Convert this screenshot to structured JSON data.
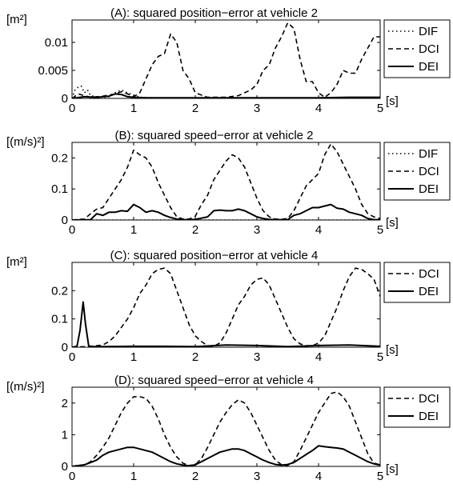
{
  "chart_data": [
    {
      "type": "line",
      "title": "(A): squared position−error at vehicle 2",
      "ylabel_unit": "[m²]",
      "xlabel_unit": "[s]",
      "xlim": [
        0,
        5
      ],
      "ylim": [
        0,
        0.014
      ],
      "yticks": [
        0,
        0.005,
        0.01
      ],
      "ytick_labels": [
        "0",
        "0.005",
        "0.01"
      ],
      "xticks": [
        0,
        1,
        2,
        3,
        4,
        5
      ],
      "xtick_labels": [
        "0",
        "1",
        "2",
        "3",
        "4",
        "5"
      ],
      "legend": [
        "DIF",
        "DCI",
        "DEI"
      ],
      "series": [
        {
          "name": "DIF",
          "style": "dotted",
          "x": [
            0,
            0.05,
            0.1,
            0.15,
            0.2,
            0.25,
            0.3,
            0.4,
            0.5,
            0.6,
            0.7,
            0.8,
            0.9,
            1.0,
            1.1,
            1.3,
            1.6,
            2.0,
            2.5,
            3.0,
            3.5,
            4.0,
            4.5,
            5.0
          ],
          "y": [
            0,
            0.0015,
            0.002,
            0.0022,
            0.001,
            0.0015,
            0.0005,
            0.0003,
            0.0002,
            0.0003,
            0.001,
            0.0015,
            0.001,
            0.0006,
            0.0002,
            0.0001,
            0.0001,
            0.0001,
            0.0001,
            0.0001,
            0.0001,
            0.0001,
            0.0001,
            0.0001
          ]
        },
        {
          "name": "DCI",
          "style": "dashed",
          "x": [
            0,
            0.1,
            0.2,
            0.3,
            0.5,
            0.7,
            0.8,
            0.9,
            1.0,
            1.1,
            1.2,
            1.3,
            1.4,
            1.5,
            1.6,
            1.7,
            1.8,
            1.9,
            2.0,
            2.2,
            2.5,
            2.7,
            2.8,
            2.9,
            3.0,
            3.1,
            3.2,
            3.3,
            3.4,
            3.5,
            3.6,
            3.7,
            3.8,
            3.9,
            4.0,
            4.1,
            4.2,
            4.3,
            4.4,
            4.5,
            4.6,
            4.7,
            4.8,
            4.9,
            5.0
          ],
          "y": [
            0,
            0.0008,
            0.0005,
            0.0002,
            0.0004,
            0.0008,
            0.0012,
            0.0008,
            0.0003,
            0.001,
            0.0035,
            0.006,
            0.0075,
            0.008,
            0.0115,
            0.01,
            0.005,
            0.0035,
            0.001,
            0.0002,
            0.0002,
            0.0005,
            0.001,
            0.0015,
            0.0025,
            0.005,
            0.006,
            0.009,
            0.011,
            0.0135,
            0.0125,
            0.007,
            0.003,
            0.003,
            0.001,
            0.0002,
            0.001,
            0.0025,
            0.005,
            0.0045,
            0.0045,
            0.007,
            0.009,
            0.011,
            0.011
          ]
        },
        {
          "name": "DEI",
          "style": "solid",
          "x": [
            0,
            0.2,
            0.4,
            0.6,
            0.7,
            0.8,
            0.9,
            1.0,
            1.2,
            1.5,
            2.0,
            2.5,
            3.0,
            3.5,
            4.0,
            4.5,
            5.0
          ],
          "y": [
            0,
            0.0003,
            0.0002,
            0.0004,
            0.0008,
            0.0007,
            0.0003,
            0.0002,
            0.0001,
            0.0001,
            0.0001,
            0.0001,
            0.0001,
            0.0001,
            0.0001,
            0.0002,
            0.0002
          ]
        }
      ]
    },
    {
      "type": "line",
      "title": "(B): squared speed−error at vehicle 2",
      "ylabel_unit": "[(m/s)²]",
      "xlabel_unit": "[s]",
      "xlim": [
        0,
        5
      ],
      "ylim": [
        0,
        0.25
      ],
      "yticks": [
        0,
        0.1,
        0.2
      ],
      "ytick_labels": [
        "0",
        "0.1",
        "0.2"
      ],
      "xticks": [
        0,
        1,
        2,
        3,
        4,
        5
      ],
      "xtick_labels": [
        "0",
        "1",
        "2",
        "3",
        "4",
        "5"
      ],
      "legend": [
        "DIF",
        "DCI",
        "DEI"
      ],
      "series": [
        {
          "name": "DIF",
          "style": "dotted",
          "x": [
            0,
            1,
            2,
            3,
            4,
            5
          ],
          "y": [
            0,
            0,
            0,
            0,
            0,
            0
          ]
        },
        {
          "name": "DCI",
          "style": "dashed",
          "x": [
            0,
            0.2,
            0.3,
            0.4,
            0.5,
            0.6,
            0.7,
            0.8,
            0.9,
            1.0,
            1.1,
            1.2,
            1.3,
            1.4,
            1.5,
            1.6,
            1.7,
            1.8,
            1.9,
            2.0,
            2.1,
            2.2,
            2.3,
            2.4,
            2.5,
            2.6,
            2.7,
            2.8,
            2.9,
            3.0,
            3.1,
            3.2,
            3.3,
            3.4,
            3.5,
            3.6,
            3.7,
            3.8,
            3.9,
            4.0,
            4.1,
            4.2,
            4.3,
            4.4,
            4.5,
            4.6,
            4.7,
            4.8,
            4.9,
            5.0
          ],
          "y": [
            0,
            0.003,
            0.02,
            0.035,
            0.04,
            0.07,
            0.1,
            0.13,
            0.17,
            0.225,
            0.21,
            0.2,
            0.17,
            0.12,
            0.08,
            0.04,
            0.01,
            0.003,
            0.003,
            0.012,
            0.05,
            0.08,
            0.13,
            0.16,
            0.19,
            0.21,
            0.2,
            0.17,
            0.12,
            0.07,
            0.03,
            0.01,
            0.003,
            0.002,
            0.005,
            0.03,
            0.07,
            0.11,
            0.13,
            0.15,
            0.21,
            0.245,
            0.22,
            0.18,
            0.14,
            0.1,
            0.05,
            0.02,
            0.01,
            0.005
          ]
        },
        {
          "name": "DEI",
          "style": "solid",
          "x": [
            0,
            0.3,
            0.4,
            0.5,
            0.6,
            0.7,
            0.8,
            0.9,
            1.0,
            1.1,
            1.2,
            1.3,
            1.4,
            1.5,
            1.6,
            1.7,
            1.8,
            1.9,
            2.0,
            2.2,
            2.3,
            2.4,
            2.5,
            2.6,
            2.7,
            2.8,
            2.9,
            3.0,
            3.1,
            3.2,
            3.3,
            3.5,
            3.6,
            3.7,
            3.8,
            3.9,
            4.0,
            4.1,
            4.2,
            4.3,
            4.4,
            4.5,
            4.6,
            4.7,
            4.8,
            4.9,
            5.0
          ],
          "y": [
            0,
            0.001,
            0.02,
            0.015,
            0.025,
            0.025,
            0.03,
            0.028,
            0.05,
            0.04,
            0.025,
            0.03,
            0.025,
            0.015,
            0.008,
            0.003,
            0.001,
            0.001,
            0.002,
            0.01,
            0.03,
            0.032,
            0.03,
            0.03,
            0.035,
            0.03,
            0.02,
            0.01,
            0.005,
            0.002,
            0.001,
            0.001,
            0.015,
            0.02,
            0.03,
            0.04,
            0.04,
            0.045,
            0.05,
            0.038,
            0.035,
            0.025,
            0.02,
            0.015,
            0.005,
            0.001,
            0.001
          ]
        }
      ]
    },
    {
      "type": "line",
      "title": "(C): squared position−error at vehicle 4",
      "ylabel_unit": "[m²]",
      "xlabel_unit": "[s]",
      "xlim": [
        0,
        5
      ],
      "ylim": [
        0,
        0.3
      ],
      "yticks": [
        0,
        0.1,
        0.2
      ],
      "ytick_labels": [
        "0",
        "0.1",
        "0.2"
      ],
      "xticks": [
        0,
        1,
        2,
        3,
        4,
        5
      ],
      "xtick_labels": [
        "0",
        "1",
        "2",
        "3",
        "4",
        "5"
      ],
      "legend": [
        "DCI",
        "DEI"
      ],
      "series": [
        {
          "name": "DCI",
          "style": "dashed",
          "x": [
            0,
            0.3,
            0.5,
            0.6,
            0.7,
            0.8,
            0.9,
            1.0,
            1.1,
            1.2,
            1.3,
            1.4,
            1.5,
            1.6,
            1.7,
            1.8,
            1.9,
            2.0,
            2.1,
            2.2,
            2.3,
            2.4,
            2.5,
            2.6,
            2.7,
            2.8,
            2.9,
            3.0,
            3.1,
            3.2,
            3.3,
            3.4,
            3.5,
            3.6,
            3.7,
            3.8,
            3.9,
            4.0,
            4.1,
            4.2,
            4.3,
            4.4,
            4.5,
            4.6,
            4.7,
            4.8,
            4.9,
            5.0
          ],
          "y": [
            0,
            0.003,
            0.008,
            0.02,
            0.04,
            0.07,
            0.1,
            0.14,
            0.19,
            0.22,
            0.26,
            0.275,
            0.28,
            0.26,
            0.2,
            0.14,
            0.08,
            0.04,
            0.02,
            0.005,
            0.003,
            0.015,
            0.05,
            0.1,
            0.15,
            0.18,
            0.22,
            0.24,
            0.245,
            0.22,
            0.17,
            0.12,
            0.07,
            0.03,
            0.012,
            0.005,
            0.005,
            0.015,
            0.04,
            0.09,
            0.14,
            0.2,
            0.25,
            0.28,
            0.275,
            0.26,
            0.24,
            0.18
          ]
        },
        {
          "name": "DEI",
          "style": "solid",
          "x": [
            0,
            0.08,
            0.13,
            0.18,
            0.22,
            0.27,
            0.32,
            0.5,
            1.0,
            1.5,
            2.0,
            2.5,
            3.0,
            3.5,
            4.0,
            4.5,
            5.0
          ],
          "y": [
            0,
            0.003,
            0.06,
            0.16,
            0.08,
            0.005,
            0.002,
            0.002,
            0.003,
            0.003,
            0.002,
            0.008,
            0.006,
            0.002,
            0.006,
            0.008,
            0.003
          ]
        }
      ]
    },
    {
      "type": "line",
      "title": "(D): squared speed−error at vehicle 4",
      "ylabel_unit": "[(m/s)²]",
      "xlabel_unit": "[s]",
      "xlim": [
        0,
        5
      ],
      "ylim": [
        0,
        2.5
      ],
      "yticks": [
        0,
        1,
        2
      ],
      "ytick_labels": [
        "0",
        "1",
        "2"
      ],
      "xticks": [
        0,
        1,
        2,
        3,
        4,
        5
      ],
      "xtick_labels": [
        "0",
        "1",
        "2",
        "3",
        "4",
        "5"
      ],
      "legend": [
        "DCI",
        "DEI"
      ],
      "series": [
        {
          "name": "DCI",
          "style": "dashed",
          "x": [
            0,
            0.2,
            0.3,
            0.4,
            0.5,
            0.6,
            0.7,
            0.8,
            0.9,
            1.0,
            1.1,
            1.2,
            1.3,
            1.4,
            1.5,
            1.6,
            1.7,
            1.8,
            1.9,
            2.0,
            2.1,
            2.2,
            2.3,
            2.4,
            2.5,
            2.6,
            2.7,
            2.8,
            2.9,
            3.0,
            3.1,
            3.2,
            3.3,
            3.4,
            3.5,
            3.6,
            3.7,
            3.8,
            3.9,
            4.0,
            4.1,
            4.2,
            4.3,
            4.4,
            4.5,
            4.6,
            4.7,
            4.8,
            4.9,
            5.0
          ],
          "y": [
            0,
            0.05,
            0.15,
            0.35,
            0.6,
            0.9,
            1.3,
            1.7,
            2.0,
            2.2,
            2.2,
            2.15,
            1.9,
            1.5,
            1.0,
            0.6,
            0.3,
            0.1,
            0.03,
            0.05,
            0.25,
            0.6,
            1.0,
            1.4,
            1.7,
            1.95,
            2.1,
            2.0,
            1.7,
            1.3,
            0.9,
            0.5,
            0.2,
            0.05,
            0.03,
            0.15,
            0.5,
            0.9,
            1.3,
            1.7,
            2.0,
            2.3,
            2.35,
            2.2,
            1.9,
            1.4,
            0.9,
            0.4,
            0.1,
            0.05
          ]
        },
        {
          "name": "DEI",
          "style": "solid",
          "x": [
            0,
            0.2,
            0.3,
            0.4,
            0.5,
            0.6,
            0.7,
            0.8,
            0.9,
            1.0,
            1.1,
            1.2,
            1.3,
            1.4,
            1.5,
            1.6,
            1.7,
            1.8,
            1.9,
            2.0,
            2.1,
            2.2,
            2.3,
            2.4,
            2.5,
            2.6,
            2.7,
            2.8,
            2.9,
            3.0,
            3.1,
            3.2,
            3.3,
            3.4,
            3.5,
            3.6,
            3.7,
            3.8,
            3.9,
            4.0,
            4.1,
            4.2,
            4.3,
            4.4,
            4.5,
            4.6,
            4.7,
            4.8,
            4.9,
            5.0
          ],
          "y": [
            0,
            0.05,
            0.12,
            0.2,
            0.35,
            0.45,
            0.5,
            0.55,
            0.6,
            0.6,
            0.55,
            0.5,
            0.45,
            0.35,
            0.25,
            0.15,
            0.08,
            0.04,
            0.02,
            0.05,
            0.15,
            0.25,
            0.35,
            0.45,
            0.5,
            0.55,
            0.55,
            0.5,
            0.4,
            0.3,
            0.2,
            0.12,
            0.06,
            0.04,
            0.06,
            0.12,
            0.25,
            0.38,
            0.5,
            0.65,
            0.62,
            0.6,
            0.58,
            0.55,
            0.45,
            0.35,
            0.25,
            0.15,
            0.08,
            0.04
          ]
        }
      ]
    }
  ]
}
